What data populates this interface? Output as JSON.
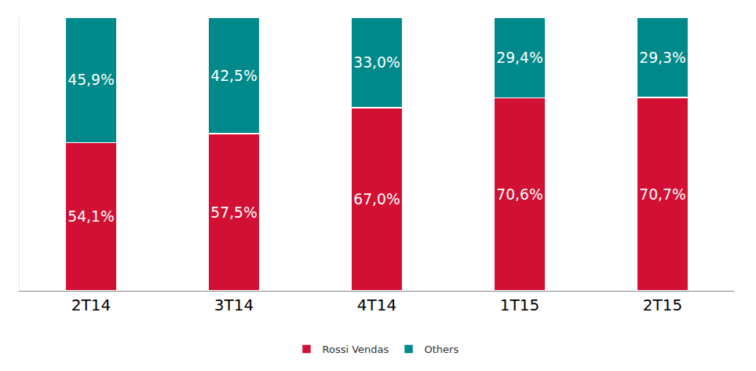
{
  "chart_data": {
    "type": "bar",
    "stacked": true,
    "categories": [
      "2T14",
      "3T14",
      "4T14",
      "1T15",
      "2T15"
    ],
    "series": [
      {
        "name": "Rossi Vendas",
        "color": "#d11034",
        "values": [
          54.1,
          57.5,
          67.0,
          70.6,
          70.7
        ],
        "value_labels": [
          "54,1%",
          "57,5%",
          "67,0%",
          "70,6%",
          "70,7%"
        ]
      },
      {
        "name": "Others",
        "color": "#00898a",
        "values": [
          45.9,
          42.5,
          33.0,
          29.4,
          29.3
        ],
        "value_labels": [
          "45,9%",
          "42,5%",
          "33,0%",
          "29,4%",
          "29,3%"
        ]
      }
    ],
    "ylim": [
      0,
      100
    ],
    "tick_labels": "x",
    "data_labels": true,
    "grid": false,
    "legend": "bottom"
  }
}
